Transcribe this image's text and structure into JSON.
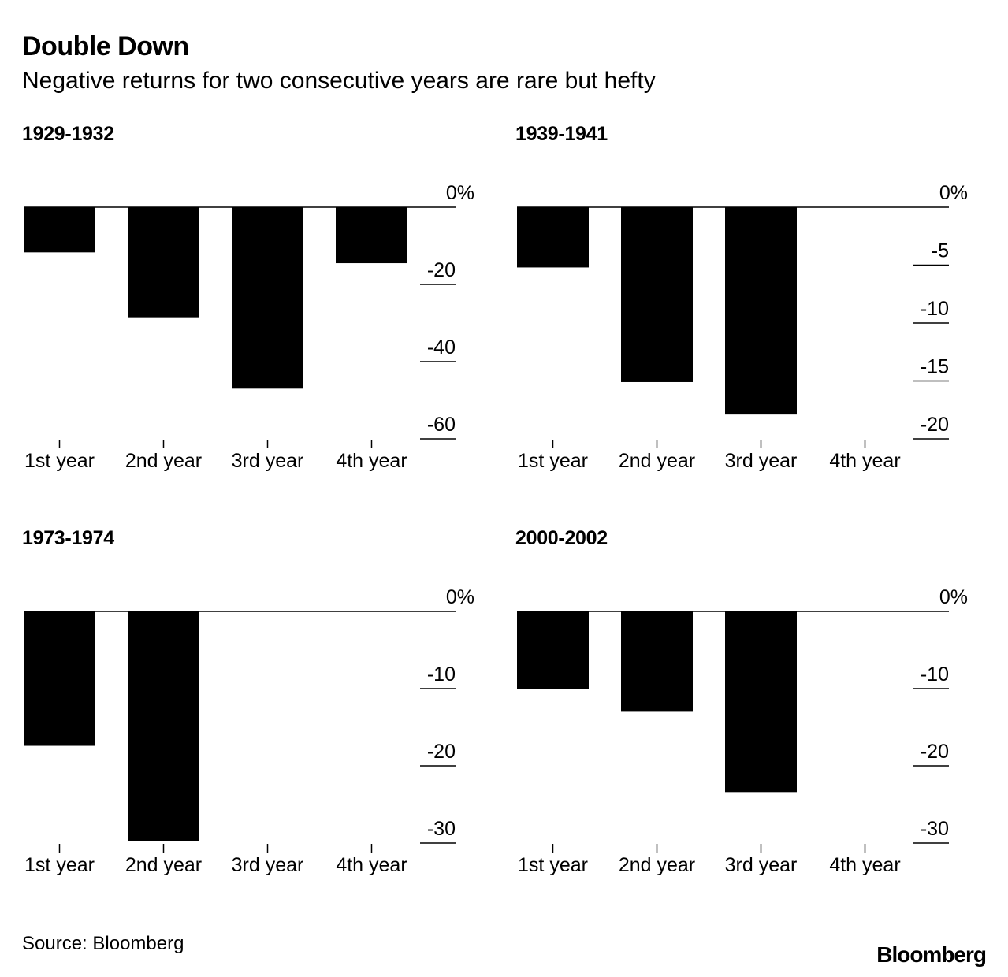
{
  "header": {
    "title": "Double Down",
    "subtitle": "Negative returns for two consecutive years are rare but hefty"
  },
  "footer": {
    "source": "Source: Bloomberg",
    "logo": "Bloomberg"
  },
  "colors": {
    "bar": "#000000",
    "axis": "#000000",
    "background": "#ffffff"
  },
  "chart_data": [
    {
      "type": "bar",
      "title": "1929-1932",
      "categories": [
        "1st year",
        "2nd year",
        "3rd year",
        "4th year"
      ],
      "values": [
        -11.7,
        -28.5,
        -47.0,
        -14.5
      ],
      "yticks": [
        0,
        -20,
        -40,
        -60
      ],
      "ytick_labels": [
        "0%",
        "-20",
        "-40",
        "-60"
      ],
      "ylim": [
        -60,
        0
      ]
    },
    {
      "type": "bar",
      "title": "1939-1941",
      "categories": [
        "1st year",
        "2nd year",
        "3rd year",
        "4th year"
      ],
      "values": [
        -5.2,
        -15.1,
        -17.9,
        null
      ],
      "yticks": [
        0,
        -5,
        -10,
        -15,
        -20
      ],
      "ytick_labels": [
        "0%",
        "-5",
        "-10",
        "-15",
        "-20"
      ],
      "ylim": [
        -20,
        0
      ]
    },
    {
      "type": "bar",
      "title": "1973-1974",
      "categories": [
        "1st year",
        "2nd year",
        "3rd year",
        "4th year"
      ],
      "values": [
        -17.4,
        -29.7,
        null,
        null
      ],
      "yticks": [
        0,
        -10,
        -20,
        -30
      ],
      "ytick_labels": [
        "0%",
        "-10",
        "-20",
        "-30"
      ],
      "ylim": [
        -30,
        0
      ]
    },
    {
      "type": "bar",
      "title": "2000-2002",
      "categories": [
        "1st year",
        "2nd year",
        "3rd year",
        "4th year"
      ],
      "values": [
        -10.1,
        -13.0,
        -23.4,
        null
      ],
      "yticks": [
        0,
        -10,
        -20,
        -30
      ],
      "ytick_labels": [
        "0%",
        "-10",
        "-20",
        "-30"
      ],
      "ylim": [
        -30,
        0
      ]
    }
  ]
}
